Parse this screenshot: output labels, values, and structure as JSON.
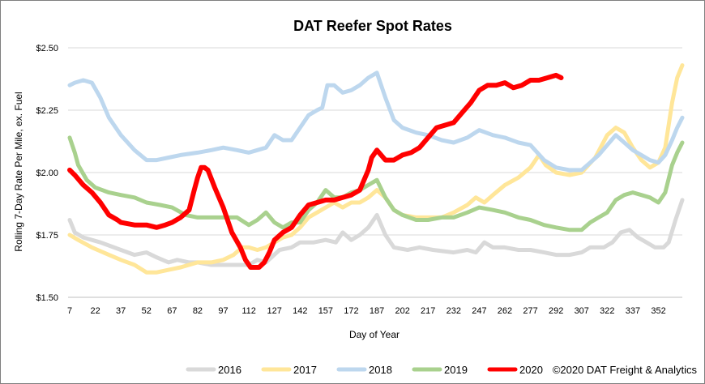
{
  "chart_data": {
    "type": "line",
    "title": "DAT Reefer Spot Rates",
    "xlabel": "Day of Year",
    "ylabel": "Rolling 7-Day Rate Per Mile, ex. Fuel",
    "xlim": [
      7,
      366
    ],
    "ylim": [
      1.5,
      2.5
    ],
    "xticks": [
      7,
      22,
      37,
      52,
      67,
      82,
      97,
      112,
      127,
      142,
      157,
      172,
      187,
      202,
      217,
      232,
      247,
      262,
      277,
      292,
      307,
      322,
      337,
      352
    ],
    "yticks": [
      {
        "value": 1.5,
        "label": "$1.50"
      },
      {
        "value": 1.75,
        "label": "$1.75"
      },
      {
        "value": 2.0,
        "label": "$2.00"
      },
      {
        "value": 2.25,
        "label": "$2.25"
      },
      {
        "value": 2.5,
        "label": "$2.50"
      }
    ],
    "grid": "horizontal",
    "legend": "bottom",
    "copyright": "©2020 DAT Freight & Analytics",
    "series": [
      {
        "name": "2016",
        "color": "#d9d9d9",
        "points": [
          [
            7,
            1.81
          ],
          [
            10,
            1.76
          ],
          [
            15,
            1.74
          ],
          [
            25,
            1.72
          ],
          [
            37,
            1.69
          ],
          [
            45,
            1.67
          ],
          [
            52,
            1.68
          ],
          [
            58,
            1.66
          ],
          [
            65,
            1.64
          ],
          [
            70,
            1.65
          ],
          [
            77,
            1.64
          ],
          [
            82,
            1.64
          ],
          [
            90,
            1.63
          ],
          [
            97,
            1.63
          ],
          [
            105,
            1.63
          ],
          [
            112,
            1.63
          ],
          [
            117,
            1.65
          ],
          [
            122,
            1.64
          ],
          [
            130,
            1.69
          ],
          [
            137,
            1.7
          ],
          [
            142,
            1.72
          ],
          [
            150,
            1.72
          ],
          [
            157,
            1.73
          ],
          [
            163,
            1.72
          ],
          [
            167,
            1.76
          ],
          [
            172,
            1.73
          ],
          [
            177,
            1.75
          ],
          [
            182,
            1.78
          ],
          [
            187,
            1.83
          ],
          [
            192,
            1.75
          ],
          [
            197,
            1.7
          ],
          [
            205,
            1.69
          ],
          [
            212,
            1.7
          ],
          [
            220,
            1.69
          ],
          [
            232,
            1.68
          ],
          [
            240,
            1.69
          ],
          [
            245,
            1.68
          ],
          [
            250,
            1.72
          ],
          [
            255,
            1.7
          ],
          [
            262,
            1.7
          ],
          [
            270,
            1.69
          ],
          [
            277,
            1.69
          ],
          [
            285,
            1.68
          ],
          [
            292,
            1.67
          ],
          [
            300,
            1.67
          ],
          [
            307,
            1.68
          ],
          [
            312,
            1.7
          ],
          [
            320,
            1.7
          ],
          [
            325,
            1.72
          ],
          [
            330,
            1.76
          ],
          [
            335,
            1.77
          ],
          [
            340,
            1.74
          ],
          [
            345,
            1.72
          ],
          [
            350,
            1.7
          ],
          [
            355,
            1.7
          ],
          [
            358,
            1.72
          ],
          [
            362,
            1.81
          ],
          [
            366,
            1.89
          ]
        ]
      },
      {
        "name": "2017",
        "color": "#ffe699",
        "points": [
          [
            7,
            1.75
          ],
          [
            12,
            1.73
          ],
          [
            20,
            1.7
          ],
          [
            30,
            1.67
          ],
          [
            37,
            1.65
          ],
          [
            45,
            1.63
          ],
          [
            52,
            1.6
          ],
          [
            58,
            1.6
          ],
          [
            65,
            1.61
          ],
          [
            72,
            1.62
          ],
          [
            82,
            1.64
          ],
          [
            90,
            1.64
          ],
          [
            97,
            1.65
          ],
          [
            103,
            1.67
          ],
          [
            108,
            1.7
          ],
          [
            112,
            1.7
          ],
          [
            117,
            1.69
          ],
          [
            122,
            1.7
          ],
          [
            127,
            1.72
          ],
          [
            132,
            1.74
          ],
          [
            137,
            1.75
          ],
          [
            142,
            1.78
          ],
          [
            147,
            1.82
          ],
          [
            152,
            1.84
          ],
          [
            157,
            1.86
          ],
          [
            162,
            1.88
          ],
          [
            167,
            1.86
          ],
          [
            172,
            1.88
          ],
          [
            177,
            1.88
          ],
          [
            182,
            1.9
          ],
          [
            187,
            1.93
          ],
          [
            192,
            1.9
          ],
          [
            197,
            1.85
          ],
          [
            202,
            1.83
          ],
          [
            210,
            1.82
          ],
          [
            217,
            1.82
          ],
          [
            225,
            1.82
          ],
          [
            232,
            1.84
          ],
          [
            240,
            1.87
          ],
          [
            245,
            1.9
          ],
          [
            250,
            1.88
          ],
          [
            255,
            1.91
          ],
          [
            262,
            1.95
          ],
          [
            270,
            1.98
          ],
          [
            277,
            2.02
          ],
          [
            282,
            2.07
          ],
          [
            286,
            2.03
          ],
          [
            292,
            2.0
          ],
          [
            300,
            1.99
          ],
          [
            307,
            2.0
          ],
          [
            315,
            2.06
          ],
          [
            322,
            2.15
          ],
          [
            327,
            2.18
          ],
          [
            332,
            2.16
          ],
          [
            337,
            2.1
          ],
          [
            342,
            2.05
          ],
          [
            347,
            2.02
          ],
          [
            352,
            2.04
          ],
          [
            356,
            2.1
          ],
          [
            360,
            2.28
          ],
          [
            363,
            2.38
          ],
          [
            366,
            2.43
          ]
        ]
      },
      {
        "name": "2018",
        "color": "#bdd7ee",
        "points": [
          [
            7,
            2.35
          ],
          [
            10,
            2.36
          ],
          [
            15,
            2.37
          ],
          [
            20,
            2.36
          ],
          [
            25,
            2.3
          ],
          [
            30,
            2.22
          ],
          [
            37,
            2.15
          ],
          [
            45,
            2.09
          ],
          [
            52,
            2.05
          ],
          [
            58,
            2.05
          ],
          [
            65,
            2.06
          ],
          [
            72,
            2.07
          ],
          [
            82,
            2.08
          ],
          [
            90,
            2.09
          ],
          [
            97,
            2.1
          ],
          [
            105,
            2.09
          ],
          [
            112,
            2.08
          ],
          [
            117,
            2.09
          ],
          [
            122,
            2.1
          ],
          [
            127,
            2.15
          ],
          [
            132,
            2.13
          ],
          [
            137,
            2.13
          ],
          [
            142,
            2.18
          ],
          [
            147,
            2.23
          ],
          [
            152,
            2.25
          ],
          [
            155,
            2.26
          ],
          [
            158,
            2.35
          ],
          [
            162,
            2.35
          ],
          [
            167,
            2.32
          ],
          [
            172,
            2.33
          ],
          [
            177,
            2.35
          ],
          [
            182,
            2.38
          ],
          [
            187,
            2.4
          ],
          [
            192,
            2.3
          ],
          [
            197,
            2.21
          ],
          [
            202,
            2.18
          ],
          [
            210,
            2.16
          ],
          [
            217,
            2.15
          ],
          [
            225,
            2.13
          ],
          [
            232,
            2.12
          ],
          [
            240,
            2.14
          ],
          [
            247,
            2.17
          ],
          [
            255,
            2.15
          ],
          [
            262,
            2.14
          ],
          [
            270,
            2.12
          ],
          [
            277,
            2.11
          ],
          [
            285,
            2.05
          ],
          [
            292,
            2.02
          ],
          [
            300,
            2.01
          ],
          [
            307,
            2.01
          ],
          [
            312,
            2.04
          ],
          [
            317,
            2.07
          ],
          [
            322,
            2.11
          ],
          [
            327,
            2.15
          ],
          [
            332,
            2.12
          ],
          [
            337,
            2.09
          ],
          [
            342,
            2.07
          ],
          [
            347,
            2.05
          ],
          [
            352,
            2.04
          ],
          [
            356,
            2.07
          ],
          [
            360,
            2.13
          ],
          [
            363,
            2.18
          ],
          [
            366,
            2.22
          ]
        ]
      },
      {
        "name": "2019",
        "color": "#a9d18e",
        "points": [
          [
            7,
            2.14
          ],
          [
            10,
            2.08
          ],
          [
            12,
            2.03
          ],
          [
            17,
            1.97
          ],
          [
            22,
            1.94
          ],
          [
            30,
            1.92
          ],
          [
            37,
            1.91
          ],
          [
            45,
            1.9
          ],
          [
            52,
            1.88
          ],
          [
            60,
            1.87
          ],
          [
            67,
            1.86
          ],
          [
            75,
            1.83
          ],
          [
            82,
            1.82
          ],
          [
            90,
            1.82
          ],
          [
            97,
            1.82
          ],
          [
            105,
            1.82
          ],
          [
            112,
            1.79
          ],
          [
            117,
            1.81
          ],
          [
            122,
            1.84
          ],
          [
            127,
            1.8
          ],
          [
            132,
            1.78
          ],
          [
            137,
            1.8
          ],
          [
            142,
            1.8
          ],
          [
            147,
            1.85
          ],
          [
            152,
            1.88
          ],
          [
            157,
            1.93
          ],
          [
            162,
            1.9
          ],
          [
            167,
            1.9
          ],
          [
            172,
            1.92
          ],
          [
            177,
            1.93
          ],
          [
            182,
            1.95
          ],
          [
            187,
            1.97
          ],
          [
            192,
            1.9
          ],
          [
            197,
            1.85
          ],
          [
            202,
            1.83
          ],
          [
            210,
            1.81
          ],
          [
            217,
            1.81
          ],
          [
            225,
            1.82
          ],
          [
            232,
            1.82
          ],
          [
            240,
            1.84
          ],
          [
            247,
            1.86
          ],
          [
            255,
            1.85
          ],
          [
            262,
            1.84
          ],
          [
            270,
            1.82
          ],
          [
            277,
            1.81
          ],
          [
            285,
            1.79
          ],
          [
            292,
            1.78
          ],
          [
            300,
            1.77
          ],
          [
            307,
            1.77
          ],
          [
            312,
            1.8
          ],
          [
            317,
            1.82
          ],
          [
            322,
            1.84
          ],
          [
            327,
            1.89
          ],
          [
            332,
            1.91
          ],
          [
            337,
            1.92
          ],
          [
            342,
            1.91
          ],
          [
            347,
            1.9
          ],
          [
            352,
            1.88
          ],
          [
            356,
            1.92
          ],
          [
            360,
            2.03
          ],
          [
            363,
            2.08
          ],
          [
            366,
            2.12
          ]
        ]
      },
      {
        "name": "2020",
        "color": "#ff0000",
        "points": [
          [
            7,
            2.01
          ],
          [
            10,
            1.99
          ],
          [
            15,
            1.95
          ],
          [
            20,
            1.92
          ],
          [
            25,
            1.88
          ],
          [
            30,
            1.83
          ],
          [
            35,
            1.81
          ],
          [
            37,
            1.8
          ],
          [
            45,
            1.79
          ],
          [
            52,
            1.79
          ],
          [
            58,
            1.78
          ],
          [
            63,
            1.79
          ],
          [
            67,
            1.8
          ],
          [
            72,
            1.82
          ],
          [
            77,
            1.85
          ],
          [
            80,
            1.93
          ],
          [
            82,
            1.98
          ],
          [
            84,
            2.02
          ],
          [
            86,
            2.02
          ],
          [
            88,
            2.01
          ],
          [
            92,
            1.94
          ],
          [
            97,
            1.86
          ],
          [
            102,
            1.76
          ],
          [
            107,
            1.7
          ],
          [
            110,
            1.65
          ],
          [
            113,
            1.62
          ],
          [
            118,
            1.62
          ],
          [
            121,
            1.64
          ],
          [
            124,
            1.68
          ],
          [
            127,
            1.73
          ],
          [
            132,
            1.76
          ],
          [
            137,
            1.78
          ],
          [
            142,
            1.83
          ],
          [
            147,
            1.87
          ],
          [
            152,
            1.88
          ],
          [
            157,
            1.89
          ],
          [
            162,
            1.89
          ],
          [
            167,
            1.9
          ],
          [
            172,
            1.91
          ],
          [
            177,
            1.93
          ],
          [
            182,
            2.01
          ],
          [
            184,
            2.06
          ],
          [
            187,
            2.09
          ],
          [
            192,
            2.05
          ],
          [
            197,
            2.05
          ],
          [
            202,
            2.07
          ],
          [
            207,
            2.08
          ],
          [
            212,
            2.1
          ],
          [
            217,
            2.14
          ],
          [
            222,
            2.18
          ],
          [
            227,
            2.19
          ],
          [
            232,
            2.2
          ],
          [
            237,
            2.24
          ],
          [
            242,
            2.28
          ],
          [
            247,
            2.33
          ],
          [
            252,
            2.35
          ],
          [
            257,
            2.35
          ],
          [
            262,
            2.36
          ],
          [
            267,
            2.34
          ],
          [
            272,
            2.35
          ],
          [
            277,
            2.37
          ],
          [
            282,
            2.37
          ],
          [
            287,
            2.38
          ],
          [
            292,
            2.39
          ],
          [
            295,
            2.38
          ]
        ]
      }
    ]
  }
}
